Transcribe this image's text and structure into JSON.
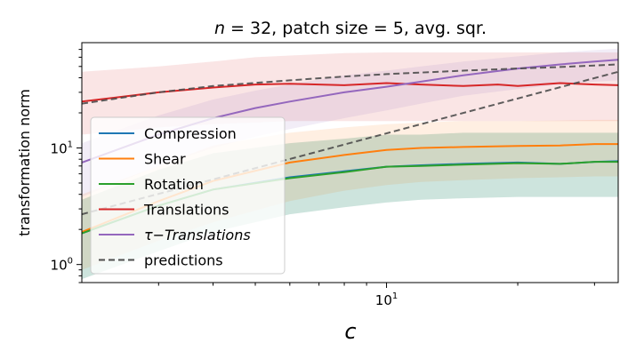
{
  "chart_data": {
    "type": "line",
    "title_parts": {
      "n_var": "n",
      "n_eq": " = 32, patch size  = 5, avg. sqr."
    },
    "xlabel": "c",
    "ylabel": "transformation norm",
    "xscale": "log",
    "yscale": "log",
    "xlim": [
      2,
      34
    ],
    "ylim": [
      0.7,
      80
    ],
    "x_major_ticks": [
      {
        "value": 10,
        "base": "10",
        "exp": "1"
      }
    ],
    "y_major_ticks": [
      {
        "value": 1,
        "base": "10",
        "exp": "0"
      },
      {
        "value": 10,
        "base": "10",
        "exp": "1"
      }
    ],
    "legend_position": "lower-left",
    "series": [
      {
        "name": "Compression",
        "label_main": "Compression",
        "label_sub": "",
        "italic": false,
        "color": "#1f77b4",
        "style": "solid",
        "x": [
          2,
          3,
          4,
          6,
          8,
          10,
          12,
          15,
          20,
          25,
          30,
          34
        ],
        "y": [
          1.85,
          3.2,
          4.4,
          5.6,
          6.3,
          6.9,
          7.1,
          7.3,
          7.5,
          7.3,
          7.6,
          7.7
        ],
        "band_lo": [
          0.75,
          1.3,
          1.9,
          2.7,
          3.1,
          3.4,
          3.6,
          3.7,
          3.8,
          3.8,
          3.8,
          3.8
        ],
        "band_hi": [
          3.6,
          6.5,
          9,
          11,
          12,
          13,
          13,
          13.5,
          13.5,
          13.5,
          13.5,
          13.5
        ]
      },
      {
        "name": "Shear",
        "label_main": "Shear",
        "label_sub": "",
        "italic": false,
        "color": "#ff7f0e",
        "style": "solid",
        "x": [
          2,
          3,
          4,
          6,
          8,
          10,
          12,
          15,
          20,
          25,
          30,
          34
        ],
        "y": [
          1.9,
          3.5,
          5.2,
          7.5,
          8.7,
          9.6,
          10,
          10.2,
          10.4,
          10.5,
          10.8,
          10.8
        ],
        "band_lo": [
          0.9,
          1.6,
          2.3,
          3.5,
          4.3,
          4.8,
          5.1,
          5.3,
          5.5,
          5.6,
          5.7,
          5.7
        ],
        "band_hi": [
          4,
          7,
          10.5,
          13.5,
          15,
          16,
          16.5,
          17,
          17,
          17.2,
          17.4,
          17.4
        ]
      },
      {
        "name": "Rotation",
        "label_main": "Rotation",
        "label_sub": "",
        "italic": false,
        "color": "#2ca02c",
        "style": "solid",
        "x": [
          2,
          3,
          4,
          6,
          8,
          10,
          12,
          15,
          20,
          25,
          30,
          34
        ],
        "y": [
          1.85,
          3.2,
          4.4,
          5.5,
          6.2,
          6.9,
          7,
          7.2,
          7.4,
          7.3,
          7.6,
          7.6
        ],
        "band_lo": [
          0.75,
          1.3,
          1.9,
          2.7,
          3.1,
          3.4,
          3.6,
          3.7,
          3.8,
          3.8,
          3.8,
          3.8
        ],
        "band_hi": [
          3.6,
          6.5,
          9,
          11,
          12,
          13,
          13,
          13.5,
          13.5,
          13.5,
          13.5,
          13.5
        ]
      },
      {
        "name": "Translations",
        "label_main": "Translations",
        "label_sub": "",
        "italic": false,
        "color": "#d62728",
        "style": "solid",
        "x": [
          2,
          3,
          4,
          5,
          6,
          8,
          10,
          12,
          15,
          18,
          20,
          25,
          30,
          34
        ],
        "y": [
          25,
          30,
          33,
          35,
          35.5,
          34.5,
          36,
          35,
          34,
          35,
          34,
          36,
          35,
          34.5
        ],
        "band_lo": [
          13,
          15,
          16,
          16.5,
          17,
          17,
          17,
          17,
          17,
          17,
          17,
          17,
          17,
          17
        ],
        "band_hi": [
          45,
          50,
          55,
          60,
          62,
          65,
          66,
          66,
          66,
          66,
          66,
          66,
          66,
          66
        ]
      },
      {
        "name": "τ−Translations",
        "label_main": "τ",
        "label_sub": "−Translations",
        "italic": true,
        "color": "#9467bd",
        "style": "solid",
        "x": [
          2,
          3,
          4,
          5,
          6,
          8,
          10,
          12,
          15,
          20,
          25,
          30,
          34
        ],
        "y": [
          7.5,
          13,
          18,
          22,
          25,
          30,
          33.5,
          37,
          42,
          48,
          52,
          55,
          57
        ],
        "band_lo": [
          3.8,
          7,
          10,
          12.5,
          14.5,
          18,
          21,
          24,
          28,
          32,
          35,
          37,
          38
        ],
        "band_hi": [
          11,
          19,
          26,
          31,
          35,
          42,
          46,
          50,
          55,
          61,
          66,
          69,
          71
        ]
      },
      {
        "name": "predictions",
        "label_main": "predictions",
        "label_sub": "",
        "italic": false,
        "color": "#4d4d4d",
        "style": "dashed",
        "x": [
          2,
          3,
          4,
          6,
          8,
          10,
          15,
          20,
          25,
          30,
          34
        ],
        "y": [
          24,
          30,
          34,
          38,
          41,
          43,
          46,
          48,
          49.5,
          51,
          52
        ]
      },
      {
        "name": "predictions-2",
        "label_main": "",
        "label_sub": "",
        "italic": false,
        "color": "#4d4d4d",
        "style": "dashed",
        "no_legend": true,
        "x": [
          2,
          34
        ],
        "y": [
          2.7,
          45
        ]
      }
    ]
  }
}
